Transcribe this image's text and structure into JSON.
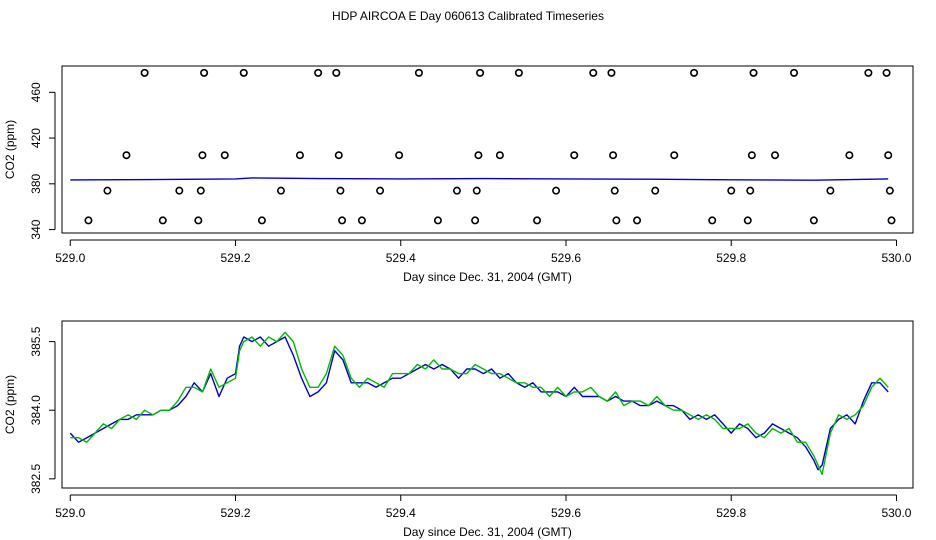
{
  "title": "HDP AIRCOA E  Day 060613  Calibrated Timeseries",
  "colors": {
    "blue": "#0000cc",
    "green": "#00bb00",
    "axis": "#000000"
  },
  "chart_data": [
    {
      "type": "scatter",
      "xlabel": "Day since Dec. 31, 2004 (GMT)",
      "ylabel": "CO2 (ppm)",
      "xlim": [
        528.99,
        530.02
      ],
      "ylim": [
        337,
        483
      ],
      "xticks": [
        529.0,
        529.2,
        529.4,
        529.6,
        529.8,
        530.0
      ],
      "xtick_labels": [
        "529.0",
        "529.2",
        "529.4",
        "529.6",
        "529.8",
        "530.0"
      ],
      "yticks": [
        340,
        380,
        420,
        460
      ],
      "ytick_labels": [
        "340",
        "380",
        "420",
        "460"
      ],
      "series": [
        {
          "style": "open-circle",
          "points": [
            [
              529.022,
              348
            ],
            [
              529.045,
              374
            ],
            [
              529.068,
              405
            ],
            [
              529.09,
              477
            ],
            [
              529.112,
              348
            ],
            [
              529.132,
              374
            ],
            [
              529.155,
              348
            ],
            [
              529.158,
              374
            ],
            [
              529.16,
              405
            ],
            [
              529.162,
              477
            ],
            [
              529.187,
              405
            ],
            [
              529.21,
              477
            ],
            [
              529.232,
              348
            ],
            [
              529.255,
              374
            ],
            [
              529.278,
              405
            ],
            [
              529.3,
              477
            ],
            [
              529.322,
              477
            ],
            [
              529.325,
              405
            ],
            [
              529.327,
              374
            ],
            [
              529.329,
              348
            ],
            [
              529.353,
              348
            ],
            [
              529.375,
              374
            ],
            [
              529.398,
              405
            ],
            [
              529.422,
              477
            ],
            [
              529.445,
              348
            ],
            [
              529.468,
              374
            ],
            [
              529.49,
              348
            ],
            [
              529.492,
              374
            ],
            [
              529.494,
              405
            ],
            [
              529.496,
              477
            ],
            [
              529.52,
              405
            ],
            [
              529.543,
              477
            ],
            [
              529.565,
              348
            ],
            [
              529.588,
              374
            ],
            [
              529.61,
              405
            ],
            [
              529.633,
              477
            ],
            [
              529.655,
              477
            ],
            [
              529.657,
              405
            ],
            [
              529.659,
              374
            ],
            [
              529.661,
              348
            ],
            [
              529.686,
              348
            ],
            [
              529.708,
              374
            ],
            [
              529.731,
              405
            ],
            [
              529.755,
              477
            ],
            [
              529.777,
              348
            ],
            [
              529.8,
              374
            ],
            [
              529.82,
              348
            ],
            [
              529.823,
              374
            ],
            [
              529.825,
              405
            ],
            [
              529.827,
              477
            ],
            [
              529.853,
              405
            ],
            [
              529.876,
              477
            ],
            [
              529.9,
              348
            ],
            [
              529.92,
              374
            ],
            [
              529.943,
              405
            ],
            [
              529.966,
              477
            ],
            [
              529.988,
              477
            ],
            [
              529.99,
              405
            ],
            [
              529.992,
              374
            ],
            [
              529.994,
              348
            ]
          ]
        },
        {
          "style": "line",
          "color": "#0000cc",
          "x": [
            529.0,
            529.1,
            529.2,
            529.22,
            529.3,
            529.4,
            529.5,
            529.6,
            529.7,
            529.8,
            529.9,
            529.99
          ],
          "y": [
            383.4,
            383.7,
            384.3,
            385.2,
            384.6,
            384.3,
            384.6,
            384.3,
            384.0,
            383.5,
            383.2,
            384.3
          ]
        }
      ]
    },
    {
      "type": "line",
      "xlabel": "Day since Dec. 31, 2004 (GMT)",
      "ylabel": "CO2 (ppm)",
      "xlim": [
        528.99,
        530.02
      ],
      "ylim": [
        382.3,
        385.95
      ],
      "xticks": [
        529.0,
        529.2,
        529.4,
        529.6,
        529.8,
        530.0
      ],
      "xtick_labels": [
        "529.0",
        "529.2",
        "529.4",
        "529.6",
        "529.8",
        "530.0"
      ],
      "yticks": [
        382.5,
        384.0,
        385.5
      ],
      "ytick_labels": [
        "382.5",
        "384.0",
        "385.5"
      ],
      "series": [
        {
          "color": "#0000cc",
          "x": [
            529.0,
            529.01,
            529.02,
            529.03,
            529.04,
            529.05,
            529.06,
            529.07,
            529.08,
            529.09,
            529.1,
            529.11,
            529.12,
            529.13,
            529.14,
            529.15,
            529.16,
            529.17,
            529.18,
            529.19,
            529.2,
            529.205,
            529.21,
            529.22,
            529.23,
            529.24,
            529.25,
            529.26,
            529.27,
            529.28,
            529.29,
            529.3,
            529.31,
            529.32,
            529.33,
            529.34,
            529.35,
            529.36,
            529.37,
            529.38,
            529.39,
            529.4,
            529.41,
            529.42,
            529.43,
            529.44,
            529.45,
            529.46,
            529.47,
            529.48,
            529.49,
            529.5,
            529.51,
            529.52,
            529.53,
            529.54,
            529.55,
            529.56,
            529.57,
            529.58,
            529.59,
            529.6,
            529.61,
            529.62,
            529.63,
            529.64,
            529.65,
            529.66,
            529.67,
            529.68,
            529.69,
            529.7,
            529.71,
            529.72,
            529.73,
            529.74,
            529.75,
            529.76,
            529.77,
            529.78,
            529.79,
            529.8,
            529.81,
            529.82,
            529.83,
            529.84,
            529.85,
            529.86,
            529.87,
            529.88,
            529.89,
            529.9,
            529.905,
            529.91,
            529.92,
            529.93,
            529.94,
            529.95,
            529.96,
            529.97,
            529.98,
            529.99
          ],
          "y": [
            383.5,
            383.3,
            383.4,
            383.5,
            383.6,
            383.7,
            383.8,
            383.8,
            383.9,
            383.9,
            383.9,
            384.0,
            384.0,
            384.1,
            384.3,
            384.6,
            384.4,
            384.8,
            384.3,
            384.7,
            384.8,
            385.4,
            385.6,
            385.5,
            385.6,
            385.4,
            385.5,
            385.6,
            385.2,
            384.7,
            384.3,
            384.4,
            384.6,
            385.3,
            385.1,
            384.6,
            384.6,
            384.6,
            384.5,
            384.6,
            384.7,
            384.7,
            384.8,
            384.9,
            385.0,
            384.9,
            385.0,
            384.9,
            384.7,
            384.9,
            384.9,
            384.8,
            384.9,
            384.7,
            384.8,
            384.6,
            384.5,
            384.6,
            384.4,
            384.4,
            384.4,
            384.3,
            384.5,
            384.3,
            384.3,
            384.3,
            384.2,
            384.3,
            384.2,
            384.2,
            384.1,
            384.1,
            384.2,
            384.1,
            384.1,
            384.0,
            383.8,
            383.9,
            383.8,
            383.9,
            383.7,
            383.5,
            383.7,
            383.6,
            383.4,
            383.5,
            383.7,
            383.6,
            383.5,
            383.4,
            383.2,
            382.9,
            382.7,
            382.8,
            383.6,
            383.8,
            383.9,
            383.7,
            384.2,
            384.6,
            384.6,
            384.4
          ]
        },
        {
          "color": "#00bb00",
          "x": [
            529.0,
            529.01,
            529.02,
            529.03,
            529.04,
            529.05,
            529.06,
            529.07,
            529.08,
            529.09,
            529.1,
            529.11,
            529.12,
            529.13,
            529.14,
            529.15,
            529.16,
            529.17,
            529.18,
            529.19,
            529.2,
            529.205,
            529.21,
            529.22,
            529.23,
            529.24,
            529.25,
            529.26,
            529.27,
            529.28,
            529.29,
            529.3,
            529.31,
            529.32,
            529.33,
            529.34,
            529.35,
            529.36,
            529.37,
            529.38,
            529.39,
            529.4,
            529.41,
            529.42,
            529.43,
            529.44,
            529.45,
            529.46,
            529.47,
            529.48,
            529.49,
            529.5,
            529.51,
            529.52,
            529.53,
            529.54,
            529.55,
            529.56,
            529.57,
            529.58,
            529.59,
            529.6,
            529.61,
            529.62,
            529.63,
            529.64,
            529.65,
            529.66,
            529.67,
            529.68,
            529.69,
            529.7,
            529.71,
            529.72,
            529.73,
            529.74,
            529.75,
            529.76,
            529.77,
            529.78,
            529.79,
            529.8,
            529.81,
            529.82,
            529.83,
            529.84,
            529.85,
            529.86,
            529.87,
            529.88,
            529.89,
            529.9,
            529.905,
            529.91,
            529.92,
            529.93,
            529.94,
            529.95,
            529.96,
            529.97,
            529.98,
            529.99
          ],
          "y": [
            383.4,
            383.4,
            383.3,
            383.5,
            383.7,
            383.6,
            383.8,
            383.9,
            383.8,
            384.0,
            383.9,
            384.0,
            384.0,
            384.2,
            384.5,
            384.5,
            384.4,
            384.9,
            384.5,
            384.6,
            384.7,
            385.3,
            385.5,
            385.6,
            385.4,
            385.6,
            385.5,
            385.7,
            385.5,
            384.9,
            384.5,
            384.5,
            384.8,
            385.4,
            385.2,
            384.7,
            384.5,
            384.7,
            384.6,
            384.5,
            384.8,
            384.8,
            384.8,
            385.0,
            384.9,
            385.1,
            384.9,
            384.9,
            384.8,
            384.8,
            385.0,
            384.9,
            384.8,
            384.8,
            384.7,
            384.6,
            384.6,
            384.5,
            384.5,
            384.3,
            384.5,
            384.3,
            384.4,
            384.4,
            384.5,
            384.3,
            384.2,
            384.4,
            384.1,
            384.2,
            384.2,
            384.1,
            384.3,
            384.1,
            384.0,
            384.0,
            383.9,
            383.8,
            383.9,
            383.8,
            383.6,
            383.6,
            383.6,
            383.7,
            383.5,
            383.4,
            383.6,
            383.5,
            383.6,
            383.3,
            383.3,
            383.0,
            382.8,
            382.6,
            383.5,
            383.9,
            383.8,
            383.9,
            384.1,
            384.5,
            384.7,
            384.5
          ]
        }
      ]
    }
  ]
}
